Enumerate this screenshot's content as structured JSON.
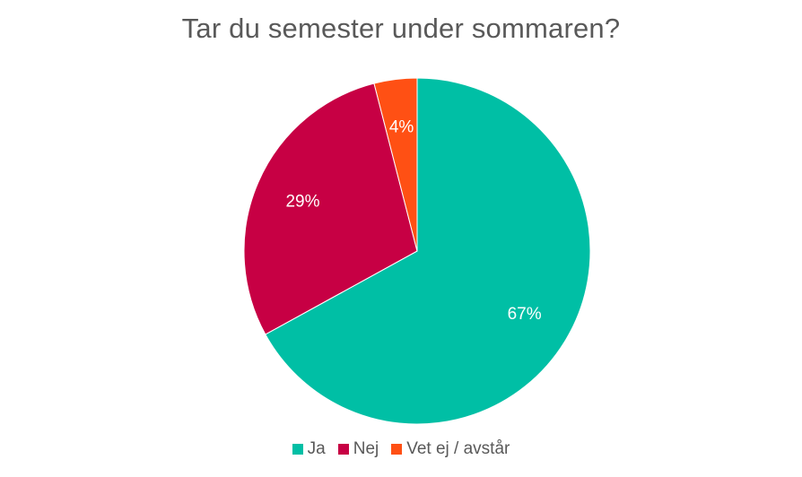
{
  "chart_data": {
    "type": "pie",
    "title": "Tar du semester under sommaren?",
    "categories": [
      "Ja",
      "Nej",
      "Vet ej / avstår"
    ],
    "values": [
      67,
      29,
      4
    ],
    "data_labels": [
      "67%",
      "29%",
      "4%"
    ],
    "colors": [
      "#00BFA5",
      "#C70044",
      "#FF5014"
    ],
    "legend_position": "bottom",
    "start_angle_deg": 0,
    "direction": "clockwise"
  }
}
